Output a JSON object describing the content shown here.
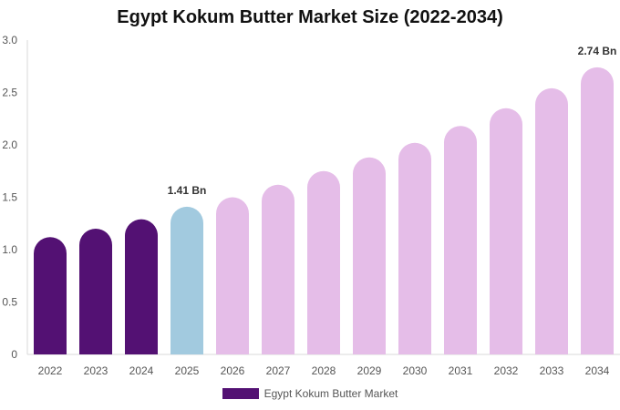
{
  "chart_data": {
    "type": "bar",
    "title": "Egypt Kokum Butter Market Size (2022-2034)",
    "xlabel": "",
    "ylabel": "",
    "ylim": [
      0,
      3.0
    ],
    "yticks": [
      "0",
      "0.5",
      "1.0",
      "1.5",
      "2.0",
      "2.5",
      "3.0"
    ],
    "ytick_values": [
      0,
      0.5,
      1.0,
      1.5,
      2.0,
      2.5,
      3.0
    ],
    "grid": false,
    "legend_position": "bottom-center",
    "categories": [
      "2022",
      "2023",
      "2024",
      "2025",
      "2026",
      "2027",
      "2028",
      "2029",
      "2030",
      "2031",
      "2032",
      "2033",
      "2034"
    ],
    "series": [
      {
        "name": "Egypt Kokum Butter Market",
        "values": [
          1.12,
          1.2,
          1.29,
          1.41,
          1.5,
          1.62,
          1.75,
          1.88,
          2.02,
          2.18,
          2.35,
          2.54,
          2.74
        ],
        "color": "#531173"
      }
    ],
    "bar_colors": [
      "#531173",
      "#531173",
      "#531173",
      "#a2cadf",
      "#e5bde8",
      "#e5bde8",
      "#e5bde8",
      "#e5bde8",
      "#e5bde8",
      "#e5bde8",
      "#e5bde8",
      "#e5bde8",
      "#e5bde8"
    ],
    "annotations": [
      {
        "category": "2025",
        "text": "1.41 Bn"
      },
      {
        "category": "2034",
        "text": "2.74 Bn"
      }
    ]
  }
}
